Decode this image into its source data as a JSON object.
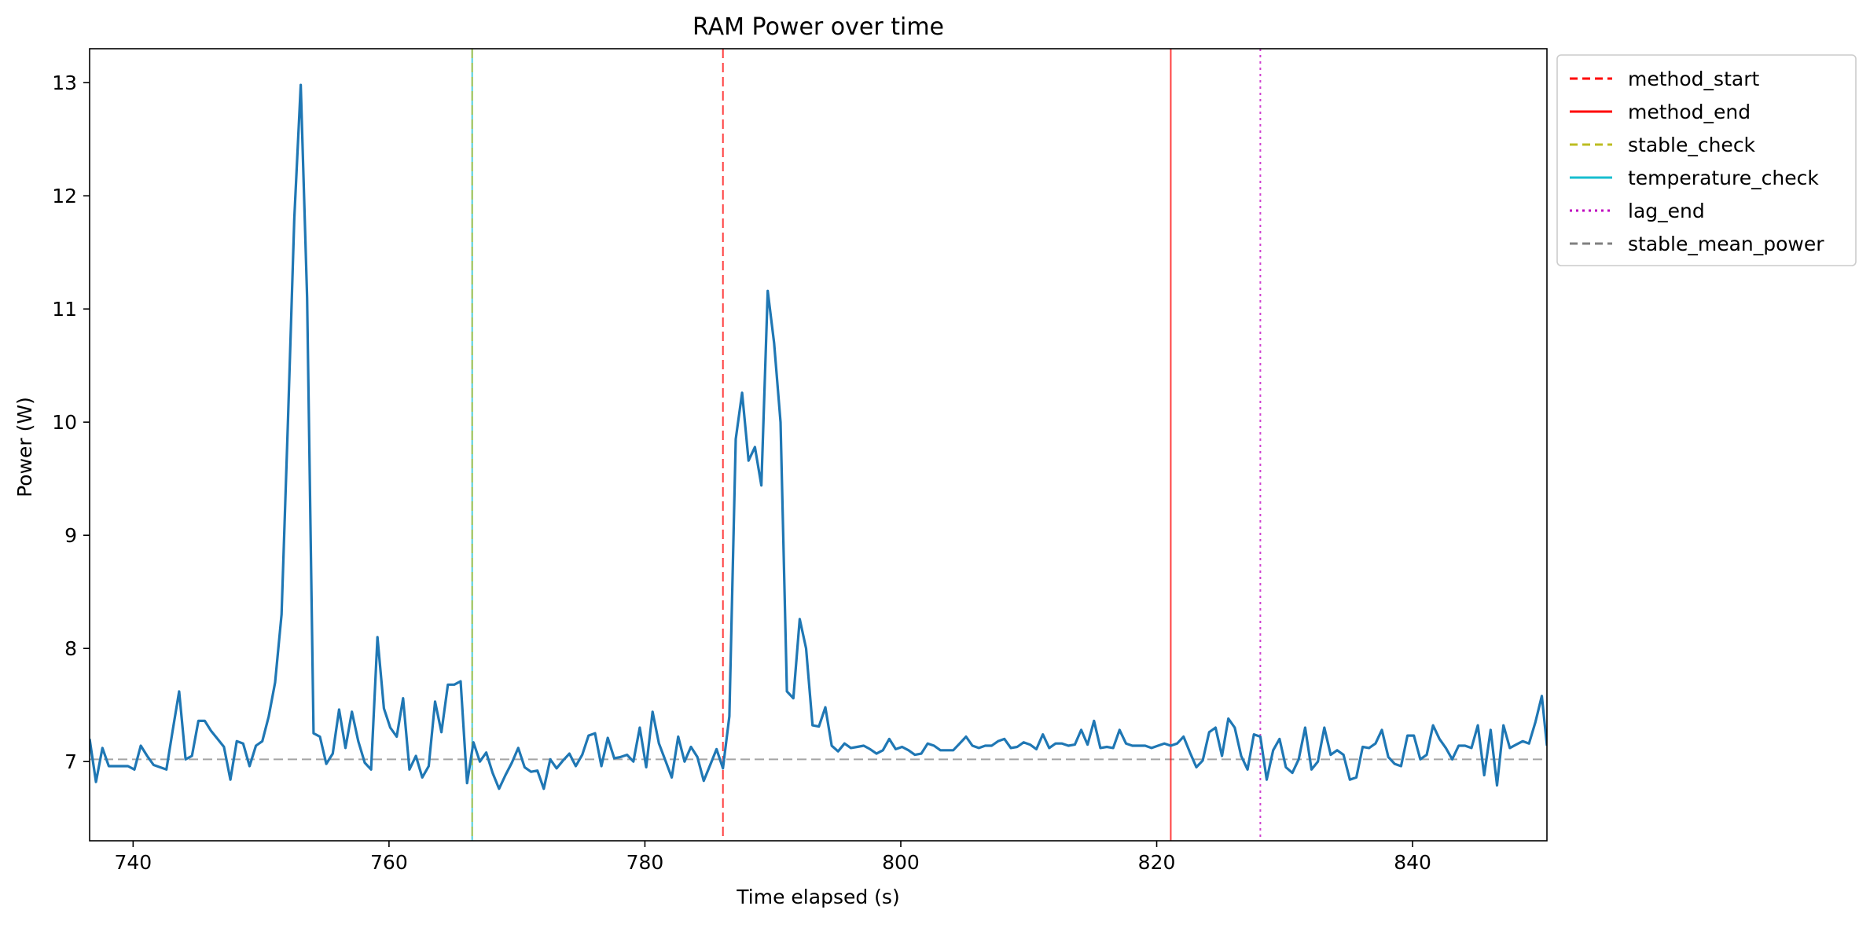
{
  "chart_data": {
    "type": "line",
    "title": "RAM Power over time",
    "xlabel": "Time elapsed (s)",
    "ylabel": "Power (W)",
    "xlim": [
      736.6,
      850.5
    ],
    "ylim": [
      6.3,
      13.3
    ],
    "xticks": [
      740,
      760,
      780,
      800,
      820,
      840
    ],
    "yticks": [
      7,
      8,
      9,
      10,
      11,
      12,
      13
    ],
    "grid": false,
    "legend_position": "outside-top-right",
    "series": [
      {
        "color": "#1f77b4",
        "x": [
          736.6,
          737.1,
          737.6,
          738.1,
          738.6,
          739.1,
          739.6,
          740.1,
          740.6,
          741.1,
          741.6,
          742.1,
          742.6,
          743.1,
          743.6,
          744.1,
          744.6,
          745.1,
          745.6,
          746.1,
          746.6,
          747.1,
          747.6,
          748.1,
          748.6,
          749.1,
          749.6,
          750.1,
          750.6,
          751.1,
          751.6,
          752.1,
          752.6,
          753.1,
          753.6,
          754.1,
          754.6,
          755.1,
          755.6,
          756.1,
          756.6,
          757.1,
          757.6,
          758.1,
          758.6,
          759.1,
          759.6,
          760.1,
          760.6,
          761.1,
          761.6,
          762.1,
          762.6,
          763.1,
          763.6,
          764.1,
          764.6,
          765.1,
          765.6,
          766.1,
          766.6,
          767.1,
          767.6,
          768.1,
          768.6,
          769.1,
          769.6,
          770.1,
          770.6,
          771.1,
          771.6,
          772.1,
          772.6,
          773.1,
          773.6,
          774.1,
          774.6,
          775.1,
          775.6,
          776.1,
          776.6,
          777.1,
          777.6,
          778.1,
          778.6,
          779.1,
          779.6,
          780.1,
          780.6,
          781.1,
          781.6,
          782.1,
          782.6,
          783.1,
          783.6,
          784.1,
          784.6,
          785.1,
          785.6,
          786.1,
          786.6,
          787.1,
          787.6,
          788.1,
          788.6,
          789.1,
          789.6,
          790.1,
          790.6,
          791.1,
          791.6,
          792.1,
          792.6,
          793.1,
          793.6,
          794.1,
          794.6,
          795.1,
          795.6,
          796.1,
          796.6,
          797.1,
          797.6,
          798.1,
          798.6,
          799.1,
          799.6,
          800.1,
          800.6,
          801.1,
          801.6,
          802.1,
          802.6,
          803.1,
          803.6,
          804.1,
          804.6,
          805.1,
          805.6,
          806.1,
          806.6,
          807.1,
          807.6,
          808.1,
          808.6,
          809.1,
          809.6,
          810.1,
          810.6,
          811.1,
          811.6,
          812.1,
          812.6,
          813.1,
          813.6,
          814.1,
          814.6,
          815.1,
          815.6,
          816.1,
          816.6,
          817.1,
          817.6,
          818.1,
          818.6,
          819.1,
          819.6,
          820.1,
          820.6,
          821.1,
          821.6,
          822.1,
          822.6,
          823.1,
          823.6,
          824.1,
          824.6,
          825.1,
          825.6,
          826.1,
          826.6,
          827.1,
          827.6,
          828.1,
          828.6,
          829.1,
          829.6,
          830.1,
          830.6,
          831.1,
          831.6,
          832.1,
          832.6,
          833.1,
          833.6,
          834.1,
          834.6,
          835.1,
          835.6,
          836.1,
          836.6,
          837.1,
          837.6,
          838.1,
          838.6,
          839.1,
          839.6,
          840.1,
          840.6,
          841.1,
          841.6,
          842.1,
          842.6,
          843.1,
          843.6,
          844.1,
          844.6,
          845.1,
          845.6,
          846.1,
          846.6,
          847.1,
          847.6,
          848.1,
          848.6,
          849.1,
          849.6,
          850.1,
          850.5
        ],
        "y": [
          7.2,
          6.82,
          7.12,
          6.96,
          6.96,
          6.96,
          6.96,
          6.93,
          7.14,
          7.05,
          6.97,
          6.95,
          6.93,
          7.28,
          7.62,
          7.02,
          7.05,
          7.36,
          7.36,
          7.27,
          7.2,
          7.13,
          6.84,
          7.18,
          7.16,
          6.96,
          7.14,
          7.18,
          7.4,
          7.7,
          8.3,
          10.0,
          11.8,
          12.98,
          11.1,
          7.25,
          7.22,
          6.98,
          7.07,
          7.46,
          7.12,
          7.44,
          7.18,
          6.99,
          6.93,
          8.1,
          7.47,
          7.3,
          7.22,
          7.56,
          6.93,
          7.05,
          6.86,
          6.96,
          7.53,
          7.26,
          7.68,
          7.68,
          7.71,
          6.81,
          7.17,
          7.0,
          7.08,
          6.9,
          6.76,
          6.88,
          6.99,
          7.12,
          6.95,
          6.91,
          6.92,
          6.76,
          7.02,
          6.94,
          7.01,
          7.07,
          6.96,
          7.06,
          7.23,
          7.25,
          6.96,
          7.21,
          7.03,
          7.04,
          7.06,
          7.0,
          7.3,
          6.95,
          7.44,
          7.16,
          7.01,
          6.86,
          7.22,
          7.0,
          7.13,
          7.04,
          6.83,
          6.97,
          7.11,
          6.94,
          7.4,
          9.85,
          10.26,
          9.66,
          9.78,
          9.44,
          11.16,
          10.7,
          10.0,
          7.62,
          7.56,
          8.26,
          8.0,
          7.32,
          7.31,
          7.48,
          7.14,
          7.09,
          7.16,
          7.12,
          7.13,
          7.14,
          7.11,
          7.07,
          7.1,
          7.2,
          7.11,
          7.13,
          7.1,
          7.06,
          7.07,
          7.16,
          7.14,
          7.1,
          7.1,
          7.1,
          7.16,
          7.22,
          7.14,
          7.12,
          7.14,
          7.14,
          7.18,
          7.2,
          7.12,
          7.13,
          7.17,
          7.15,
          7.11,
          7.24,
          7.12,
          7.16,
          7.16,
          7.14,
          7.15,
          7.28,
          7.15,
          7.36,
          7.12,
          7.13,
          7.12,
          7.28,
          7.16,
          7.14,
          7.14,
          7.14,
          7.12,
          7.14,
          7.16,
          7.14,
          7.16,
          7.22,
          7.08,
          6.95,
          7.01,
          7.26,
          7.3,
          7.05,
          7.38,
          7.3,
          7.05,
          6.93,
          7.24,
          7.22,
          6.84,
          7.1,
          7.2,
          6.95,
          6.9,
          7.02,
          7.3,
          6.93,
          7.0,
          7.3,
          7.06,
          7.1,
          7.06,
          6.84,
          6.86,
          7.13,
          7.12,
          7.16,
          7.28,
          7.04,
          6.98,
          6.96,
          7.23,
          7.23,
          7.02,
          7.06,
          7.32,
          7.2,
          7.12,
          7.02,
          7.14,
          7.14,
          7.12,
          7.32,
          6.88,
          7.28,
          6.79,
          7.32,
          7.12,
          7.15,
          7.18,
          7.16,
          7.35,
          7.58,
          7.14
        ]
      }
    ],
    "vlines": [
      {
        "name": "temperature_check",
        "x": 766.5,
        "color": "#17becf",
        "style": "solid"
      },
      {
        "name": "stable_check",
        "x": 766.5,
        "color": "#bcbd22",
        "style": "dashed"
      },
      {
        "name": "method_start",
        "x": 786.1,
        "color": "#ff0000",
        "style": "dashed"
      },
      {
        "name": "method_end",
        "x": 821.1,
        "color": "#ff0000",
        "style": "solid"
      },
      {
        "name": "lag_end",
        "x": 828.1,
        "color": "#bf00bf",
        "style": "dotted"
      }
    ],
    "hlines": [
      {
        "name": "stable_mean_power",
        "y": 7.02,
        "color": "#808080",
        "style": "dashed"
      }
    ],
    "legend": [
      {
        "label": "method_start",
        "color": "#ff0000",
        "style": "dashed"
      },
      {
        "label": "method_end",
        "color": "#ff0000",
        "style": "solid"
      },
      {
        "label": "stable_check",
        "color": "#bcbd22",
        "style": "dashed"
      },
      {
        "label": "temperature_check",
        "color": "#17becf",
        "style": "solid"
      },
      {
        "label": "lag_end",
        "color": "#bf00bf",
        "style": "dotted"
      },
      {
        "label": "stable_mean_power",
        "color": "#808080",
        "style": "dashed"
      }
    ]
  }
}
